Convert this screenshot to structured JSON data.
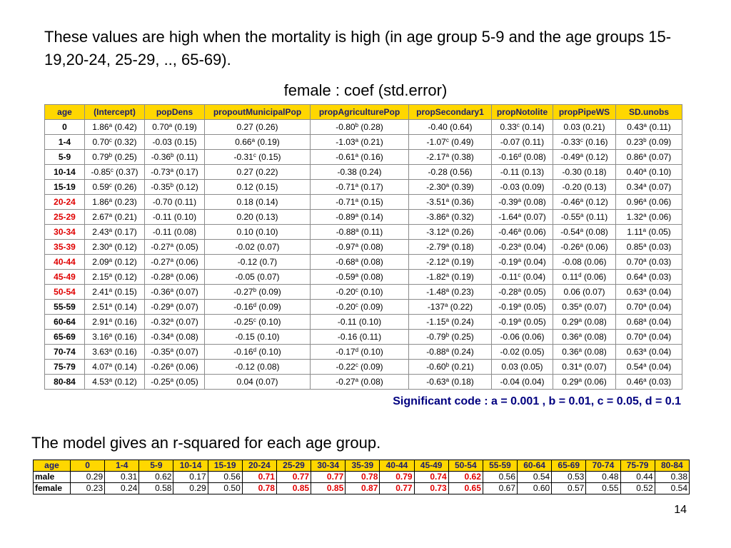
{
  "intro": "These values are high when the mortality is high (in age group 5-9 and the age groups 15-19,20-24, 25-29, .., 65-69).",
  "subtitle": "female : coef (std.error)",
  "coef_table": {
    "headers": [
      "age",
      "(Intercept)",
      "popDens",
      "propoutMunicipalPop",
      "propAgriculturePop",
      "propSecondary1",
      "propNotolite",
      "propPipeWS",
      "SD.unobs"
    ],
    "rows": [
      {
        "age": "0",
        "red": false,
        "cells": [
          [
            "1.86",
            "a",
            "(0.42)"
          ],
          [
            "0.70",
            "a",
            "(0.19)"
          ],
          [
            "0.27",
            "",
            "(0.26)"
          ],
          [
            "-0.80",
            "b",
            "(0.28)"
          ],
          [
            "-0.40",
            "",
            "(0.64)"
          ],
          [
            "0.33",
            "c",
            "(0.14)"
          ],
          [
            "0.03",
            "",
            "(0.21)"
          ],
          [
            "0.43",
            "a",
            "(0.11)"
          ]
        ]
      },
      {
        "age": "1-4",
        "red": false,
        "cells": [
          [
            "0.70",
            "c",
            "(0.32)"
          ],
          [
            "-0.03",
            "",
            "(0.15)"
          ],
          [
            "0.66",
            "a",
            "(0.19)"
          ],
          [
            "-1.03",
            "a",
            "(0.21)"
          ],
          [
            "-1.07",
            "c",
            "(0.49)"
          ],
          [
            "-0.07",
            "",
            "(0.11)"
          ],
          [
            "-0.33",
            "c",
            "(0.16)"
          ],
          [
            "0.23",
            "b",
            "(0.09)"
          ]
        ]
      },
      {
        "age": "5-9",
        "red": false,
        "cells": [
          [
            "0.79",
            "b",
            "(0.25)"
          ],
          [
            "-0.36",
            "b",
            "(0.11)"
          ],
          [
            "-0.31",
            "c",
            "(0.15)"
          ],
          [
            "-0.61",
            "a",
            "(0.16)"
          ],
          [
            "-2.17",
            "a",
            "(0.38)"
          ],
          [
            "-0.16",
            "d",
            "(0.08)"
          ],
          [
            "-0.49",
            "a",
            "(0.12)"
          ],
          [
            "0.86",
            "a",
            "(0.07)"
          ]
        ]
      },
      {
        "age": "10-14",
        "red": false,
        "cells": [
          [
            "-0.85",
            "c",
            "(0.37)"
          ],
          [
            "-0.73",
            "a",
            "(0.17)"
          ],
          [
            "0.27",
            "",
            "(0.22)"
          ],
          [
            "-0.38",
            "",
            "(0.24)"
          ],
          [
            "-0.28",
            "",
            "(0.56)"
          ],
          [
            "-0.11",
            "",
            "(0.13)"
          ],
          [
            "-0.30",
            "",
            "(0.18)"
          ],
          [
            "0.40",
            "a",
            "(0.10)"
          ]
        ]
      },
      {
        "age": "15-19",
        "red": false,
        "cells": [
          [
            "0.59",
            "c",
            "(0.26)"
          ],
          [
            "-0.35",
            "b",
            "(0.12)"
          ],
          [
            "0.12",
            "",
            "(0.15)"
          ],
          [
            "-0.71",
            "a",
            "(0.17)"
          ],
          [
            "-2.30",
            "a",
            "(0.39)"
          ],
          [
            "-0.03",
            "",
            "(0.09)"
          ],
          [
            "-0.20",
            "",
            "(0.13)"
          ],
          [
            "0.34",
            "a",
            "(0.07)"
          ]
        ]
      },
      {
        "age": "20-24",
        "red": true,
        "cells": [
          [
            "1.86",
            "a",
            "(0.23)"
          ],
          [
            "-0.70",
            "",
            "(0.11)"
          ],
          [
            "0.18",
            "",
            "(0.14)"
          ],
          [
            "-0.71",
            "a",
            "(0.15)"
          ],
          [
            "-3.51",
            "a",
            "(0.36)"
          ],
          [
            "-0.39",
            "a",
            "(0.08)"
          ],
          [
            "-0.46",
            "a",
            "(0.12)"
          ],
          [
            "0.96",
            "a",
            "(0.06)"
          ]
        ]
      },
      {
        "age": "25-29",
        "red": true,
        "cells": [
          [
            "2.67",
            "a",
            "(0.21)"
          ],
          [
            "-0.11",
            "",
            "(0.10)"
          ],
          [
            "0.20",
            "",
            "(0.13)"
          ],
          [
            "-0.89",
            "a",
            "(0.14)"
          ],
          [
            "-3.86",
            "a",
            "(0.32)"
          ],
          [
            "-1.64",
            "a",
            "(0.07)"
          ],
          [
            "-0.55",
            "a",
            "(0.11)"
          ],
          [
            "1.32",
            "a",
            "(0.06)"
          ]
        ]
      },
      {
        "age": "30-34",
        "red": true,
        "cells": [
          [
            "2.43",
            "a",
            "(0.17)"
          ],
          [
            "-0.11",
            "",
            "(0.08)"
          ],
          [
            "0.10",
            "",
            "(0.10)"
          ],
          [
            "-0.88",
            "a",
            "(0.11)"
          ],
          [
            "-3.12",
            "a",
            "(0.26)"
          ],
          [
            "-0.46",
            "a",
            "(0.06)"
          ],
          [
            "-0.54",
            "a",
            "(0.08)"
          ],
          [
            "1.11",
            "a",
            "(0.05)"
          ]
        ]
      },
      {
        "age": "35-39",
        "red": true,
        "cells": [
          [
            "2.30",
            "a",
            "(0.12)"
          ],
          [
            "-0.27",
            "a",
            "(0.05)"
          ],
          [
            "-0.02",
            "",
            "(0.07)"
          ],
          [
            "-0.97",
            "a",
            "(0.08)"
          ],
          [
            "-2.79",
            "a",
            "(0.18)"
          ],
          [
            "-0.23",
            "a",
            "(0.04)"
          ],
          [
            "-0.26",
            "a",
            "(0.06)"
          ],
          [
            "0.85",
            "a",
            "(0.03)"
          ]
        ]
      },
      {
        "age": "40-44",
        "red": true,
        "cells": [
          [
            "2.09",
            "a",
            "(0.12)"
          ],
          [
            "-0.27",
            "a",
            "(0.06)"
          ],
          [
            "-0.12",
            "",
            "(0.7)"
          ],
          [
            "-0.68",
            "a",
            "(0.08)"
          ],
          [
            "-2.12",
            "a",
            "(0.19)"
          ],
          [
            "-0.19",
            "a",
            "(0.04)"
          ],
          [
            "-0.08",
            "",
            "(0.06)"
          ],
          [
            "0.70",
            "a",
            "(0.03)"
          ]
        ]
      },
      {
        "age": "45-49",
        "red": true,
        "cells": [
          [
            "2.15",
            "a",
            "(0.12)"
          ],
          [
            "-0.28",
            "a",
            "(0.06)"
          ],
          [
            "-0.05",
            "",
            "(0.07)"
          ],
          [
            "-0.59",
            "a",
            "(0.08)"
          ],
          [
            "-1.82",
            "a",
            "(0.19)"
          ],
          [
            "-0.11",
            "c",
            "(0.04)"
          ],
          [
            "0.11",
            "d",
            "(0.06)"
          ],
          [
            "0.64",
            "a",
            "(0.03)"
          ]
        ]
      },
      {
        "age": "50-54",
        "red": true,
        "cells": [
          [
            "2.41",
            "a",
            "(0.15)"
          ],
          [
            "-0.36",
            "a",
            "(0.07)"
          ],
          [
            "-0.27",
            "b",
            "(0.09)"
          ],
          [
            "-0.20",
            "c",
            "(0.10)"
          ],
          [
            "-1.48",
            "a",
            "(0.23)"
          ],
          [
            "-0.28",
            "a",
            "(0.05)"
          ],
          [
            "0.06",
            "",
            "(0.07)"
          ],
          [
            "0.63",
            "a",
            "(0.04)"
          ]
        ]
      },
      {
        "age": "55-59",
        "red": false,
        "cells": [
          [
            "2.51",
            "a",
            "(0.14)"
          ],
          [
            "-0.29",
            "a",
            "(0.07)"
          ],
          [
            "-0.16",
            "d",
            "(0.09)"
          ],
          [
            "-0.20",
            "c",
            "(0.09)"
          ],
          [
            "-137",
            "a",
            "(0.22)"
          ],
          [
            "-0.19",
            "a",
            "(0.05)"
          ],
          [
            "0.35",
            "a",
            "(0.07)"
          ],
          [
            "0.70",
            "a",
            "(0.04)"
          ]
        ]
      },
      {
        "age": "60-64",
        "red": false,
        "cells": [
          [
            "2.91",
            "a",
            "(0.16)"
          ],
          [
            "-0.32",
            "a",
            "(0.07)"
          ],
          [
            "-0.25",
            "c",
            "(0.10)"
          ],
          [
            "-0.11",
            "",
            "(0.10)"
          ],
          [
            "-1.15",
            "a",
            "(0.24)"
          ],
          [
            "-0.19",
            "a",
            "(0.05)"
          ],
          [
            "0.29",
            "a",
            "(0.08)"
          ],
          [
            "0.68",
            "a",
            "(0.04)"
          ]
        ]
      },
      {
        "age": "65-69",
        "red": false,
        "cells": [
          [
            "3.16",
            "a",
            "(0.16)"
          ],
          [
            "-0.34",
            "a",
            "(0.08)"
          ],
          [
            "-0.15",
            "",
            "(0.10)"
          ],
          [
            "-0.16",
            "",
            "(0.11)"
          ],
          [
            "-0.79",
            "b",
            "(0.25)"
          ],
          [
            "-0.06",
            "",
            "(0.06)"
          ],
          [
            "0.36",
            "a",
            "(0.08)"
          ],
          [
            "0.70",
            "a",
            "(0.04)"
          ]
        ]
      },
      {
        "age": "70-74",
        "red": false,
        "cells": [
          [
            "3.63",
            "a",
            "(0.16)"
          ],
          [
            "-0.35",
            "a",
            "(0.07)"
          ],
          [
            "-0.16",
            "d",
            "(0.10)"
          ],
          [
            "-0.17",
            "d",
            "(0.10)"
          ],
          [
            "-0.88",
            "a",
            "(0.24)"
          ],
          [
            "-0.02",
            "",
            "(0.05)"
          ],
          [
            "0.36",
            "a",
            "(0.08)"
          ],
          [
            "0.63",
            "a",
            "(0.04)"
          ]
        ]
      },
      {
        "age": "75-79",
        "red": false,
        "cells": [
          [
            "4.07",
            "a",
            "(0.14)"
          ],
          [
            "-0.26",
            "a",
            "(0.06)"
          ],
          [
            "-0.12",
            "",
            "(0.08)"
          ],
          [
            "-0.22",
            "c",
            "(0.09)"
          ],
          [
            "-0.60",
            "b",
            "(0.21)"
          ],
          [
            "0.03",
            "",
            "(0.05)"
          ],
          [
            "0.31",
            "a",
            "(0.07)"
          ],
          [
            "0.54",
            "a",
            "(0.04)"
          ]
        ]
      },
      {
        "age": "80-84",
        "red": false,
        "cells": [
          [
            "4.53",
            "a",
            "(0.12)"
          ],
          [
            "-0.25",
            "a",
            "(0.05)"
          ],
          [
            "0.04",
            "",
            "(0.07)"
          ],
          [
            "-0.27",
            "a",
            "(0.08)"
          ],
          [
            "-0.63",
            "a",
            "(0.18)"
          ],
          [
            "-0.04",
            "",
            "(0.04)"
          ],
          [
            "0.29",
            "a",
            "(0.06)"
          ],
          [
            "0.46",
            "a",
            "(0.03)"
          ]
        ]
      }
    ]
  },
  "significance": "Significant code : a = 0.001 , b = 0.01, c = 0.05, d = 0.1",
  "rsq_title": "The model gives an r-squared for each age group.",
  "rsq_table": {
    "header_label": "age",
    "ages": [
      "0",
      "1-4",
      "5-9",
      "10-14",
      "15-19",
      "20-24",
      "25-29",
      "30-34",
      "35-39",
      "40-44",
      "45-49",
      "50-54",
      "55-59",
      "60-64",
      "65-69",
      "70-74",
      "75-79",
      "80-84"
    ],
    "rows": [
      {
        "label": "male",
        "values": [
          "0.29",
          "0.31",
          "0.62",
          "0.17",
          "0.56",
          "0.71",
          "0.77",
          "0.77",
          "0.78",
          "0.79",
          "0.74",
          "0.62",
          "0.56",
          "0.54",
          "0.53",
          "0.48",
          "0.44",
          "0.38"
        ]
      },
      {
        "label": "female",
        "values": [
          "0.23",
          "0.24",
          "0.58",
          "0.29",
          "0.50",
          "0.78",
          "0.85",
          "0.85",
          "0.87",
          "0.77",
          "0.73",
          "0.65",
          "0.67",
          "0.60",
          "0.57",
          "0.55",
          "0.52",
          "0.54"
        ]
      }
    ],
    "highlight_ages": [
      "20-24",
      "25-29",
      "30-34",
      "35-39",
      "40-44",
      "45-49",
      "50-54"
    ]
  },
  "page_number": "14",
  "colors": {
    "header_bg": "#ffd700",
    "header_text": "#1a1a6e",
    "highlight_red": "#e00000",
    "sig_text": "#000080"
  }
}
